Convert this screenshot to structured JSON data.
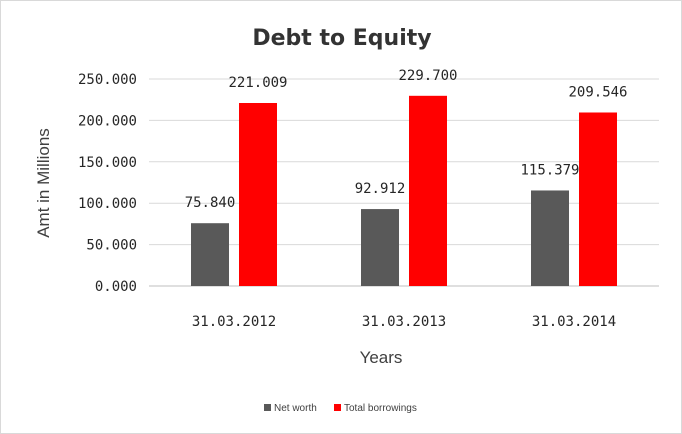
{
  "chart_data": {
    "type": "bar",
    "title": "Debt to Equity",
    "xlabel": "Years",
    "ylabel": "Amt in Millions",
    "categories": [
      "31.03.2012",
      "31.03.2013",
      "31.03.2014"
    ],
    "series": [
      {
        "name": "Net worth",
        "color": "#595959",
        "values": [
          75.84,
          92.912,
          115.379
        ],
        "labels": [
          "75.840",
          "92.912",
          "115.379"
        ]
      },
      {
        "name": "Total borrowings",
        "color": "#ff0000",
        "values": [
          221.009,
          229.7,
          209.546
        ],
        "labels": [
          "221.009",
          "229.700",
          "209.546"
        ]
      }
    ],
    "ylim": [
      0,
      250
    ],
    "yticks": [
      0,
      50,
      100,
      150,
      200,
      250
    ],
    "ytick_labels": [
      "0.000",
      "50.000",
      "100.000",
      "150.000",
      "200.000",
      "250.000"
    ],
    "grid": true,
    "legend_position": "bottom"
  }
}
